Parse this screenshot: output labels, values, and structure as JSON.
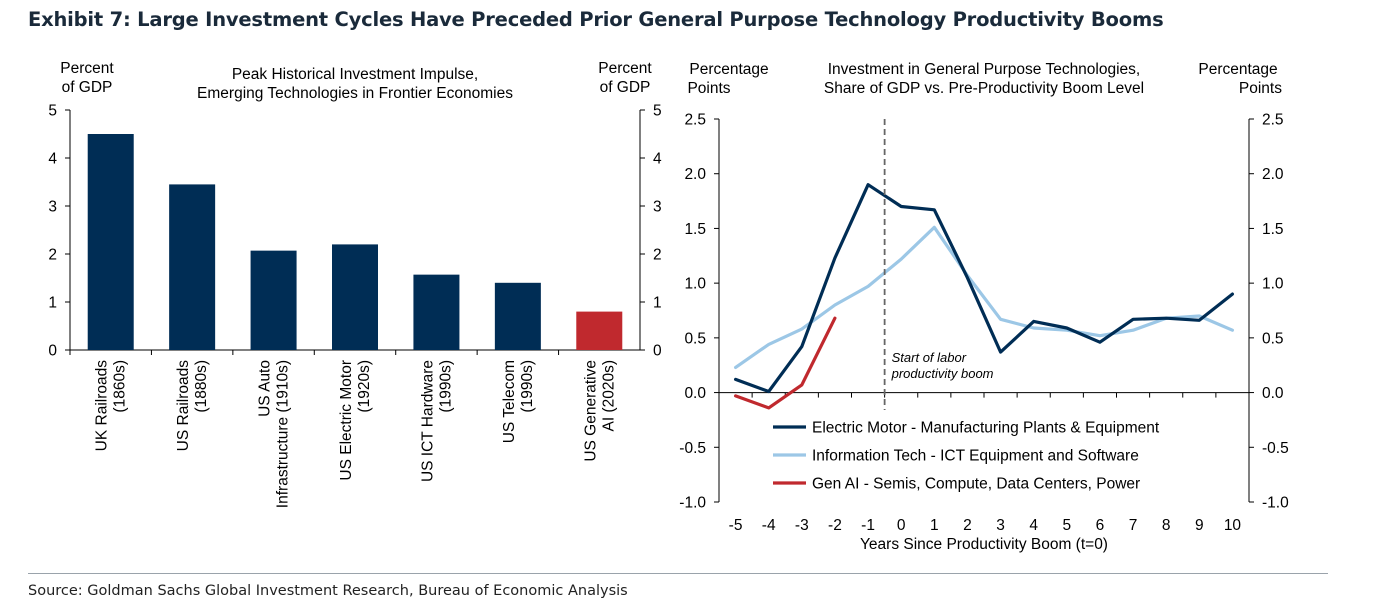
{
  "exhibit_title": "Exhibit 7: Large Investment Cycles Have Preceded Prior General Purpose Technology Productivity Booms",
  "source": "Source: Goldman Sachs Global Investment Research, Bureau of Economic Analysis",
  "colors": {
    "navy": "#002d55",
    "red": "#c0292e",
    "light_blue": "#9cc7e6",
    "axis": "#000000",
    "dash": "#666666"
  },
  "chart_data": [
    {
      "type": "bar",
      "title": [
        "Peak Historical Investment Impulse,",
        "Emerging Technologies in Frontier Economies"
      ],
      "ylabel_left": [
        "Percent",
        "of GDP"
      ],
      "ylabel_right": [
        "Percent",
        "of GDP"
      ],
      "ylim": [
        0,
        5
      ],
      "yticks": [
        0,
        1,
        2,
        3,
        4,
        5
      ],
      "categories": [
        [
          "UK Railroads",
          "(1860s)"
        ],
        [
          "US Railroads",
          "(1880s)"
        ],
        [
          "US Auto",
          "Infrastructure (1910s)"
        ],
        [
          "US Electric Motor",
          "(1920s)"
        ],
        [
          "US ICT Hardware",
          "(1990s)"
        ],
        [
          "US Telecom",
          "(1990s)"
        ],
        [
          "US Generative",
          "AI (2020s)"
        ]
      ],
      "values": [
        4.5,
        3.45,
        2.07,
        2.2,
        1.57,
        1.4,
        0.8
      ],
      "bar_colors": [
        "navy",
        "navy",
        "navy",
        "navy",
        "navy",
        "navy",
        "red"
      ]
    },
    {
      "type": "line",
      "title": [
        "Investment in General Purpose Technologies,",
        "Share of GDP vs. Pre-Productivity Boom Level"
      ],
      "ylabel_left": [
        "Percentage",
        "Points"
      ],
      "ylabel_right": [
        "Percentage",
        "Points"
      ],
      "xlabel": "Years Since Productivity Boom (t=0)",
      "xlim": [
        -5,
        10
      ],
      "ylim": [
        -1.0,
        2.5
      ],
      "yticks": [
        "-1.0",
        "-0.5",
        "0.0",
        "0.5",
        "1.0",
        "1.5",
        "2.0",
        "2.5"
      ],
      "xticks": [
        "-5",
        "-4",
        "-3",
        "-2",
        "-1",
        "0",
        "1",
        "2",
        "3",
        "4",
        "5",
        "6",
        "7",
        "8",
        "9",
        "10"
      ],
      "annotation": {
        "x": -0.5,
        "text": [
          "Start of labor",
          "productivity boom"
        ]
      },
      "series": [
        {
          "name": "Electric Motor -  Manufacturing Plants & Equipment",
          "color": "navy",
          "x": [
            -5,
            -4,
            -3,
            -2,
            -1,
            0,
            1,
            2,
            3,
            4,
            5,
            6,
            7,
            8,
            9,
            10
          ],
          "values": [
            0.12,
            0.01,
            0.42,
            1.23,
            1.9,
            1.7,
            1.67,
            1.05,
            0.37,
            0.65,
            0.59,
            0.46,
            0.67,
            0.68,
            0.66,
            0.9
          ]
        },
        {
          "name": "Information Tech - ICT Equipment and Software",
          "color": "light_blue",
          "x": [
            -5,
            -4,
            -3,
            -2,
            -1,
            0,
            1,
            2,
            3,
            4,
            5,
            6,
            7,
            8,
            9,
            10
          ],
          "values": [
            0.23,
            0.44,
            0.58,
            0.8,
            0.97,
            1.22,
            1.51,
            1.07,
            0.67,
            0.59,
            0.57,
            0.52,
            0.57,
            0.68,
            0.7,
            0.57
          ]
        },
        {
          "name": "Gen AI - Semis, Compute, Data Centers, Power",
          "color": "red",
          "x": [
            -5,
            -4,
            -3,
            -2
          ],
          "values": [
            -0.03,
            -0.14,
            0.07,
            0.68
          ]
        }
      ]
    }
  ]
}
